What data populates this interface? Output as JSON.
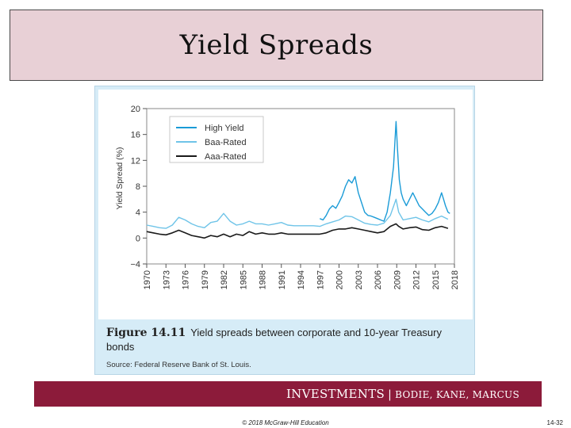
{
  "slide": {
    "title": "Yield Spreads",
    "figure_number": "Figure 14.11",
    "caption": "Yield spreads between corporate and 10-year Treasury bonds",
    "source": "Source: Federal Reserve Bank of St. Louis.",
    "banner": {
      "main": "INVESTMENTS",
      "separator": "|",
      "authors": "BODIE, KANE, MARCUS"
    },
    "copyright": "© 2018 McGraw-Hill Education",
    "page_number": "14-32"
  },
  "chart_data": {
    "type": "line",
    "title": "",
    "xlabel": "",
    "ylabel": "Yield Spread (%)",
    "xlim": [
      1970,
      2018
    ],
    "ylim": [
      -4,
      20
    ],
    "xticks": [
      "1970",
      "1973",
      "1976",
      "1979",
      "1982",
      "1985",
      "1988",
      "1991",
      "1994",
      "1997",
      "2000",
      "2003",
      "2006",
      "2009",
      "2012",
      "2015",
      "2018"
    ],
    "yticks": [
      "20",
      "16",
      "12",
      "8",
      "4",
      "0",
      "−4"
    ],
    "grid": false,
    "legend_position": "top-left",
    "series": [
      {
        "name": "High Yield",
        "color": "#1a9bd7",
        "x": [
          1997,
          1997.5,
          1998,
          1998.5,
          1999,
          1999.5,
          2000,
          2000.5,
          2001,
          2001.5,
          2002,
          2002.5,
          2003,
          2003.5,
          2004,
          2004.5,
          2005,
          2005.5,
          2006,
          2006.5,
          2007,
          2007.5,
          2008,
          2008.5,
          2008.9,
          2009.1,
          2009.4,
          2009.7,
          2010,
          2010.5,
          2011,
          2011.5,
          2012,
          2012.5,
          2013,
          2013.5,
          2014,
          2014.5,
          2015,
          2015.5,
          2016,
          2016.3,
          2016.6,
          2017,
          2017.3
        ],
        "values": [
          3.0,
          2.8,
          3.5,
          4.5,
          5.0,
          4.6,
          5.5,
          6.5,
          8.0,
          9.0,
          8.5,
          9.5,
          7.0,
          5.5,
          4.0,
          3.5,
          3.4,
          3.2,
          3.0,
          2.8,
          2.6,
          4.0,
          7.0,
          11.0,
          18.0,
          14.0,
          9.0,
          7.0,
          6.0,
          5.0,
          6.0,
          7.0,
          6.0,
          5.0,
          4.5,
          4.0,
          3.5,
          3.8,
          4.5,
          5.5,
          7.0,
          6.0,
          5.0,
          4.0,
          3.8
        ]
      },
      {
        "name": "Baa-Rated",
        "color": "#6fc4e8",
        "x": [
          1970,
          1971,
          1972,
          1973,
          1974,
          1975,
          1976,
          1977,
          1978,
          1979,
          1980,
          1981,
          1982,
          1983,
          1984,
          1985,
          1986,
          1987,
          1988,
          1989,
          1990,
          1991,
          1992,
          1993,
          1994,
          1995,
          1996,
          1997,
          1998,
          1999,
          2000,
          2001,
          2002,
          2003,
          2004,
          2005,
          2006,
          2007,
          2008,
          2008.9,
          2009.3,
          2010,
          2011,
          2012,
          2013,
          2014,
          2015,
          2016,
          2017
        ],
        "values": [
          2.0,
          1.8,
          1.6,
          1.5,
          2.0,
          3.2,
          2.8,
          2.2,
          1.8,
          1.6,
          2.4,
          2.6,
          3.8,
          2.6,
          2.0,
          2.2,
          2.6,
          2.2,
          2.2,
          2.0,
          2.2,
          2.4,
          2.0,
          1.9,
          1.9,
          1.9,
          1.9,
          1.8,
          2.2,
          2.5,
          2.8,
          3.4,
          3.3,
          2.8,
          2.3,
          2.1,
          2.0,
          2.3,
          3.5,
          6.0,
          4.0,
          2.8,
          3.0,
          3.2,
          2.8,
          2.5,
          3.0,
          3.4,
          2.9
        ]
      },
      {
        "name": "Aaa-Rated",
        "color": "#1a1a1a",
        "x": [
          1970,
          1971,
          1972,
          1973,
          1974,
          1975,
          1976,
          1977,
          1978,
          1979,
          1980,
          1981,
          1982,
          1983,
          1984,
          1985,
          1986,
          1987,
          1988,
          1989,
          1990,
          1991,
          1992,
          1993,
          1994,
          1995,
          1996,
          1997,
          1998,
          1999,
          2000,
          2001,
          2002,
          2003,
          2004,
          2005,
          2006,
          2007,
          2008,
          2008.9,
          2009.3,
          2010,
          2011,
          2012,
          2013,
          2014,
          2015,
          2016,
          2017
        ],
        "values": [
          1.0,
          0.8,
          0.6,
          0.5,
          0.8,
          1.2,
          0.8,
          0.4,
          0.2,
          0.0,
          0.4,
          0.2,
          0.6,
          0.2,
          0.6,
          0.4,
          1.0,
          0.6,
          0.8,
          0.6,
          0.6,
          0.8,
          0.6,
          0.6,
          0.6,
          0.6,
          0.6,
          0.6,
          0.8,
          1.2,
          1.4,
          1.4,
          1.6,
          1.4,
          1.2,
          1.0,
          0.8,
          1.0,
          1.8,
          2.2,
          1.8,
          1.4,
          1.6,
          1.7,
          1.3,
          1.2,
          1.6,
          1.8,
          1.5
        ]
      }
    ]
  }
}
